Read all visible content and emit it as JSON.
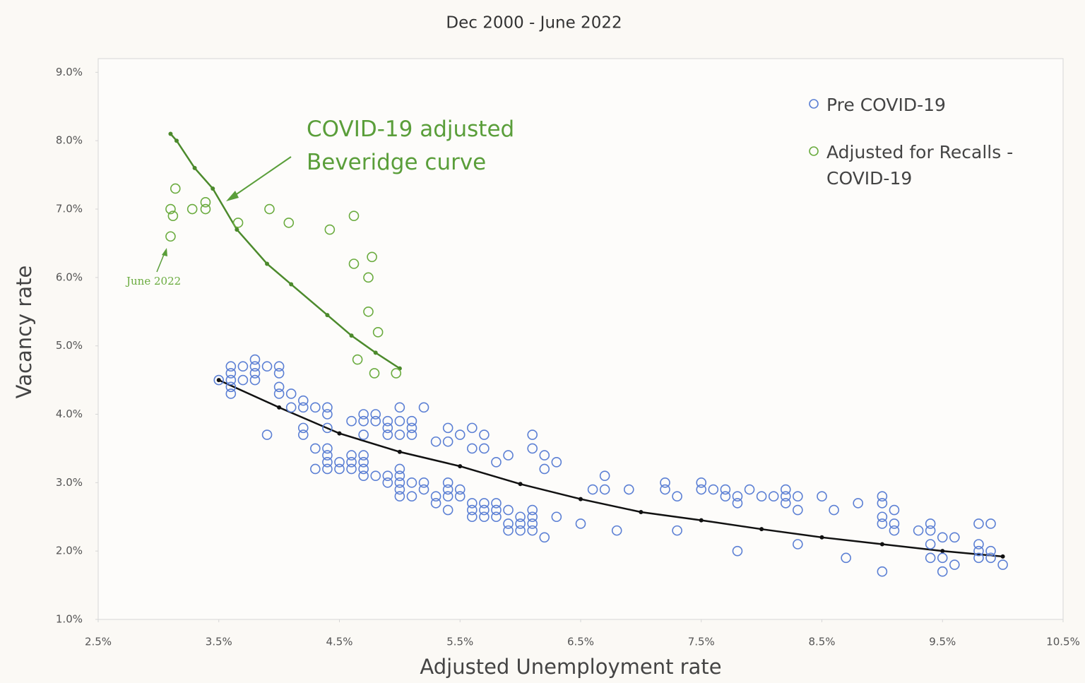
{
  "chart_data": {
    "type": "scatter",
    "title": "Dec 2000 - June 2022",
    "x_label": "Adjusted Unemployment rate",
    "y_label": "Vacancy rate",
    "xlim": [
      2.5,
      10.5
    ],
    "ylim": [
      1,
      9.2
    ],
    "xticks": [
      {
        "value": 2.5,
        "label": "2.5%"
      },
      {
        "value": 3.5,
        "label": "3.5%"
      },
      {
        "value": 4.5,
        "label": "4.5%"
      },
      {
        "value": 5.5,
        "label": "5.5%"
      },
      {
        "value": 6.5,
        "label": "6.5%"
      },
      {
        "value": 7.5,
        "label": "7.5%"
      },
      {
        "value": 8.5,
        "label": "8.5%"
      },
      {
        "value": 9.5,
        "label": "9.5%"
      },
      {
        "value": 10.5,
        "label": "10.5%"
      }
    ],
    "yticks": [
      {
        "value": 1,
        "label": "1.0%"
      },
      {
        "value": 2,
        "label": "2.0%"
      },
      {
        "value": 3,
        "label": "3.0%"
      },
      {
        "value": 4,
        "label": "4.0%"
      },
      {
        "value": 5,
        "label": "5.0%"
      },
      {
        "value": 6,
        "label": "6.0%"
      },
      {
        "value": 7,
        "label": "7.0%"
      },
      {
        "value": 8,
        "label": "8.0%"
      },
      {
        "value": 9,
        "label": "9.0%"
      }
    ],
    "series": [
      {
        "name": "Pre COVID-19",
        "color": "#5b7fd4",
        "x": [
          3.5,
          3.6,
          3.6,
          3.6,
          3.6,
          3.6,
          3.7,
          3.7,
          3.8,
          3.8,
          3.8,
          3.8,
          3.9,
          3.9,
          4.0,
          4.0,
          4.0,
          4.0,
          4.1,
          4.1,
          4.2,
          4.2,
          4.2,
          4.2,
          4.3,
          4.3,
          4.3,
          4.4,
          4.4,
          4.4,
          4.4,
          4.4,
          4.4,
          4.4,
          4.5,
          4.5,
          4.6,
          4.6,
          4.6,
          4.6,
          4.7,
          4.7,
          4.7,
          4.7,
          4.7,
          4.7,
          4.7,
          4.8,
          4.8,
          4.8,
          4.9,
          4.9,
          4.9,
          4.9,
          4.9,
          5.0,
          5.0,
          5.0,
          5.0,
          5.0,
          5.0,
          5.0,
          5.0,
          5.1,
          5.1,
          5.1,
          5.1,
          5.1,
          5.2,
          5.2,
          5.2,
          5.3,
          5.3,
          5.3,
          5.4,
          5.4,
          5.4,
          5.4,
          5.4,
          5.4,
          5.5,
          5.5,
          5.5,
          5.6,
          5.6,
          5.6,
          5.6,
          5.6,
          5.7,
          5.7,
          5.7,
          5.7,
          5.7,
          5.8,
          5.8,
          5.8,
          5.8,
          5.9,
          5.9,
          5.9,
          5.9,
          6.0,
          6.0,
          6.0,
          6.1,
          6.1,
          6.1,
          6.1,
          6.1,
          6.1,
          6.2,
          6.2,
          6.2,
          6.3,
          6.3,
          6.5,
          6.6,
          6.7,
          6.7,
          6.8,
          6.9,
          7.2,
          7.2,
          7.3,
          7.3,
          7.5,
          7.5,
          7.6,
          7.7,
          7.7,
          7.8,
          7.8,
          7.8,
          7.9,
          8.0,
          8.1,
          8.2,
          8.2,
          8.2,
          8.3,
          8.3,
          8.3,
          8.5,
          8.6,
          8.7,
          8.8,
          9.0,
          9.0,
          9.0,
          9.0,
          9.0,
          9.1,
          9.1,
          9.1,
          9.3,
          9.4,
          9.4,
          9.4,
          9.4,
          9.5,
          9.5,
          9.5,
          9.6,
          9.6,
          9.8,
          9.8,
          9.8,
          9.8,
          9.9,
          9.9,
          9.9,
          10.0
        ],
        "values": [
          4.5,
          4.7,
          4.6,
          4.5,
          4.4,
          4.3,
          4.7,
          4.5,
          4.8,
          4.7,
          4.6,
          4.5,
          4.7,
          3.7,
          4.7,
          4.6,
          4.4,
          4.3,
          4.3,
          4.1,
          4.2,
          4.1,
          3.8,
          3.7,
          4.1,
          3.5,
          3.2,
          4.1,
          4.0,
          3.8,
          3.5,
          3.4,
          3.3,
          3.2,
          3.3,
          3.2,
          3.9,
          3.4,
          3.3,
          3.2,
          4.0,
          3.9,
          3.7,
          3.4,
          3.3,
          3.2,
          3.1,
          4.0,
          3.9,
          3.1,
          3.9,
          3.8,
          3.7,
          3.1,
          3.0,
          4.1,
          3.9,
          3.7,
          3.2,
          3.1,
          3.0,
          2.9,
          2.8,
          3.9,
          3.8,
          3.7,
          3.0,
          2.8,
          4.1,
          3.0,
          2.9,
          3.6,
          2.8,
          2.7,
          3.8,
          3.6,
          3.0,
          2.9,
          2.8,
          2.6,
          3.7,
          2.9,
          2.8,
          3.8,
          3.5,
          2.7,
          2.6,
          2.5,
          3.7,
          3.5,
          2.7,
          2.6,
          2.5,
          3.3,
          2.7,
          2.6,
          2.5,
          3.4,
          2.6,
          2.4,
          2.3,
          2.5,
          2.4,
          2.3,
          3.7,
          3.5,
          2.6,
          2.5,
          2.4,
          2.3,
          3.4,
          3.2,
          2.2,
          3.3,
          2.5,
          2.4,
          2.9,
          3.1,
          2.9,
          2.3,
          2.9,
          3.0,
          2.9,
          2.8,
          2.3,
          3.0,
          2.9,
          2.9,
          2.9,
          2.8,
          2.8,
          2.7,
          2.0,
          2.9,
          2.8,
          2.8,
          2.9,
          2.8,
          2.7,
          2.8,
          2.6,
          2.1,
          2.8,
          2.6,
          1.9,
          2.7,
          2.8,
          2.7,
          2.5,
          2.4,
          1.7,
          2.6,
          2.4,
          2.3,
          2.3,
          2.4,
          2.3,
          2.1,
          1.9,
          2.2,
          1.9,
          1.7,
          2.2,
          1.8,
          2.4,
          2.1,
          2.0,
          1.9,
          2.4,
          2.0,
          1.9,
          1.8
        ]
      },
      {
        "name": "Adjusted for Recalls - COVID-19",
        "color": "#6aab3e",
        "x": [
          3.1,
          3.12,
          3.14,
          3.1,
          3.28,
          3.39,
          3.39,
          3.66,
          3.92,
          4.08,
          4.42,
          4.62,
          4.62,
          4.77,
          4.74,
          4.74,
          4.82,
          4.65,
          4.79,
          4.97
        ],
        "values": [
          7.0,
          6.9,
          7.3,
          6.6,
          7.0,
          7.1,
          7.0,
          6.8,
          7.0,
          6.8,
          6.7,
          6.9,
          6.2,
          6.3,
          6.0,
          5.5,
          5.2,
          4.8,
          4.6,
          4.6
        ]
      }
    ],
    "trend_lines": [
      {
        "color": "#4c8a2c",
        "x": [
          3.1,
          3.15,
          3.3,
          3.45,
          3.65,
          3.9,
          4.1,
          4.4,
          4.6,
          4.8,
          5.0
        ],
        "y": [
          8.1,
          8.0,
          7.6,
          7.3,
          6.7,
          6.2,
          5.9,
          5.45,
          5.15,
          4.9,
          4.67
        ]
      },
      {
        "color": "#111111",
        "x": [
          3.5,
          4.0,
          4.5,
          5.0,
          5.5,
          6.0,
          6.5,
          7.0,
          7.5,
          8.0,
          8.5,
          9.0,
          9.5,
          10.0
        ],
        "y": [
          4.5,
          4.1,
          3.72,
          3.45,
          3.24,
          2.98,
          2.76,
          2.57,
          2.45,
          2.32,
          2.2,
          2.1,
          2.0,
          1.92
        ]
      }
    ],
    "annotations": [
      "COVID-19 adjusted Beveridge curve",
      "June 2022"
    ]
  }
}
